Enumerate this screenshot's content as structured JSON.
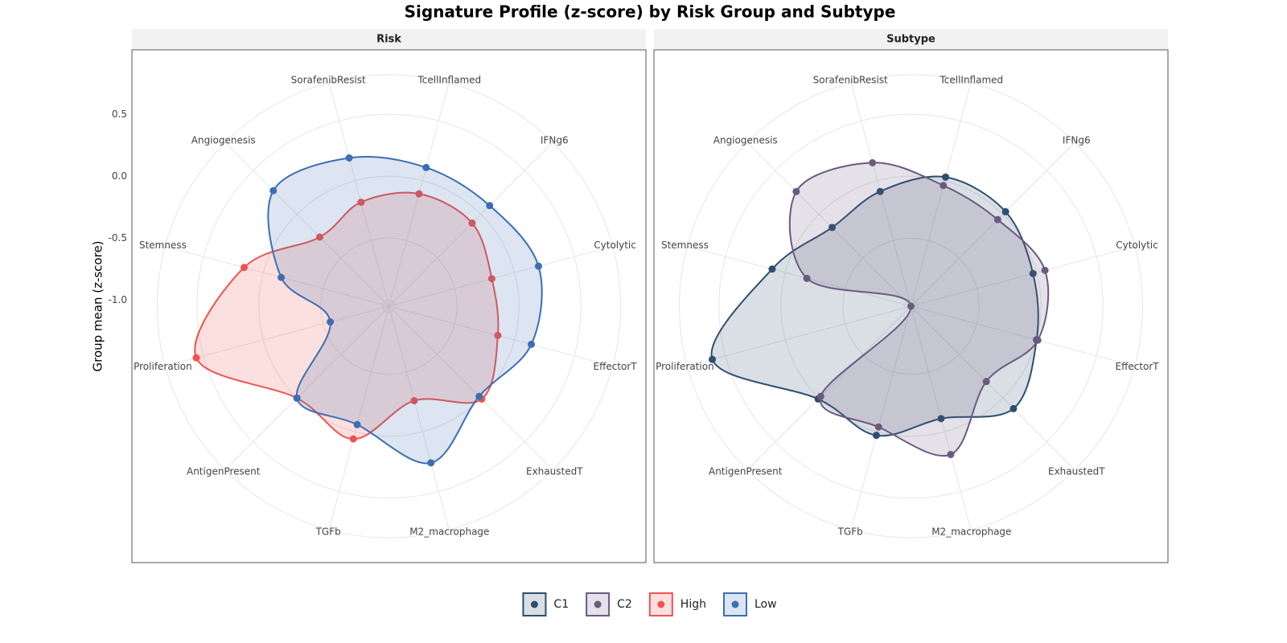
{
  "title": "Signature Profile (z-score) by Risk Group and Subtype",
  "y_label": "Group mean (z-score)",
  "chart_data": [
    {
      "type": "radar",
      "title": "Risk",
      "categories": [
        "TcellInflamed",
        "IFNg6",
        "Cytolytic",
        "EffectorT",
        "ExhaustedT",
        "M2_macrophage",
        "TGFb",
        "AntigenPresent",
        "Proliferation",
        "Stemness",
        "Angiogenesis",
        "SorafenibResist"
      ],
      "ylim": [
        -1.05,
        0.82
      ],
      "yticks": [
        {
          "value": -1.0,
          "label": "-1.0"
        },
        -0.5,
        {
          "value": 0,
          "label": "0.0"
        },
        0.5
      ],
      "series": [
        {
          "name": "High",
          "color": "#ef5350",
          "values": [
            -0.11,
            -0.1,
            -0.19,
            -0.14,
            0.01,
            -0.26,
            0.06,
            0.0,
            0.56,
            0.16,
            -0.26,
            -0.18
          ]
        },
        {
          "name": "Low",
          "color": "#3c6eb4",
          "values": [
            0.11,
            0.1,
            0.2,
            0.14,
            -0.02,
            0.26,
            -0.06,
            0.0,
            -0.56,
            -0.15,
            0.27,
            0.19
          ]
        }
      ]
    },
    {
      "type": "radar",
      "title": "Subtype",
      "categories": [
        "TcellInflamed",
        "IFNg6",
        "Cytolytic",
        "EffectorT",
        "ExhaustedT",
        "M2_macrophage",
        "TGFb",
        "AntigenPresent",
        "Proliferation",
        "Stemness",
        "Angiogenesis",
        "SorafenibResist"
      ],
      "ylim": [
        -1.05,
        0.82
      ],
      "yticks": [
        {
          "value": -1.0,
          "label": "-1.0"
        },
        -0.5,
        {
          "value": 0,
          "label": "0.0"
        },
        0.5
      ],
      "series": [
        {
          "name": "C1",
          "color": "#2c4e70",
          "values": [
            0.03,
            0.03,
            -0.03,
            0.0,
            0.12,
            -0.11,
            0.03,
            0.01,
            0.61,
            0.11,
            -0.15,
            -0.09
          ]
        },
        {
          "name": "C2",
          "color": "#6b5a80",
          "values": [
            -0.04,
            -0.06,
            0.07,
            0.01,
            -0.19,
            0.19,
            -0.04,
            -0.02,
            -1.05,
            -0.18,
            0.26,
            0.15
          ]
        }
      ]
    }
  ]
}
